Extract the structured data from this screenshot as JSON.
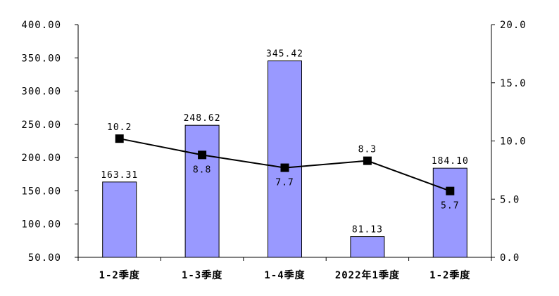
{
  "chart_data": {
    "type": "bar",
    "categories": [
      "1-2季度",
      "1-3季度",
      "1-4季度",
      "2022年1季度",
      "1-2季度"
    ],
    "series": [
      {
        "type": "bar",
        "axis": "left",
        "values": [
          163.31,
          248.62,
          345.42,
          81.13,
          184.1
        ],
        "labels": [
          "163.31",
          "248.62",
          "345.42",
          "81.13",
          "184.10"
        ]
      },
      {
        "type": "line",
        "axis": "right",
        "values": [
          10.2,
          8.8,
          7.7,
          8.3,
          5.7
        ],
        "labels": [
          "10.2",
          "8.8",
          "7.7",
          "8.3",
          "5.7"
        ]
      }
    ],
    "y_left": {
      "lim": [
        50,
        400
      ],
      "ticks": [
        50,
        100,
        150,
        200,
        250,
        300,
        350,
        400
      ],
      "tick_labels": [
        "50.00",
        "100.00",
        "150.00",
        "200.00",
        "250.00",
        "300.00",
        "350.00",
        "400.00"
      ]
    },
    "y_right": {
      "lim": [
        0,
        20
      ],
      "ticks": [
        0,
        5,
        10,
        15,
        20
      ],
      "tick_labels": [
        "0.0",
        "5.0",
        "10.0",
        "15.0",
        "20.0"
      ]
    },
    "grid": false,
    "legend": "none",
    "colors": {
      "bar_fill": "#9999ff",
      "bar_stroke": "#000000",
      "line": "#000000",
      "marker": "#000000"
    }
  }
}
